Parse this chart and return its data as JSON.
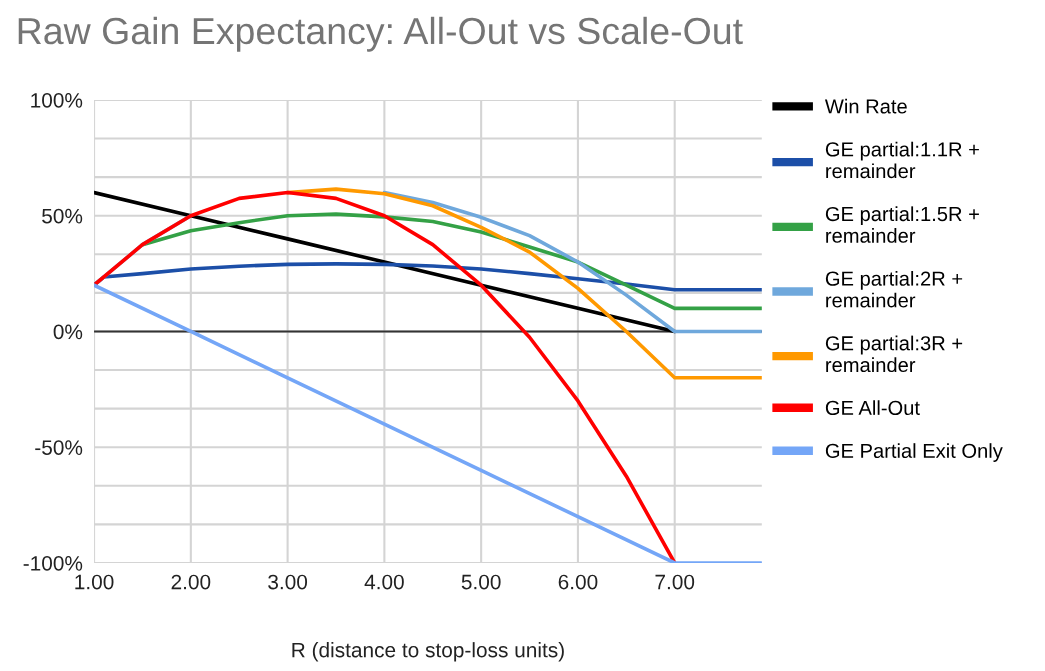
{
  "chart_data": {
    "type": "line",
    "title": "Raw Gain Expectancy: All-Out vs Scale-Out",
    "xlabel": "R (distance to stop-loss units)",
    "xlim": [
      1,
      7.9
    ],
    "xticks": [
      {
        "value": 1,
        "label": "1.00"
      },
      {
        "value": 2,
        "label": "2.00"
      },
      {
        "value": 3,
        "label": "3.00"
      },
      {
        "value": 4,
        "label": "4.00"
      },
      {
        "value": 5,
        "label": "5.00"
      },
      {
        "value": 6,
        "label": "6.00"
      },
      {
        "value": 7,
        "label": "7.00"
      }
    ],
    "ylim": [
      -100,
      100
    ],
    "yticks": [
      {
        "value": -100,
        "label": "-100%"
      },
      {
        "value": -83.33,
        "label": null
      },
      {
        "value": -66.67,
        "label": null
      },
      {
        "value": -50,
        "label": "-50%"
      },
      {
        "value": -33.33,
        "label": null
      },
      {
        "value": -16.67,
        "label": null
      },
      {
        "value": 0,
        "label": "0%"
      },
      {
        "value": 16.67,
        "label": null
      },
      {
        "value": 33.33,
        "label": null
      },
      {
        "value": 50,
        "label": "50%"
      },
      {
        "value": 66.67,
        "label": null
      },
      {
        "value": 83.33,
        "label": null
      },
      {
        "value": 100,
        "label": "100%"
      }
    ],
    "grid": true,
    "legend": "top right",
    "marker": "none",
    "line_style": "solid",
    "ref_lines": [
      {
        "axis": "y",
        "value": 0,
        "color": "#333333"
      }
    ],
    "series": [
      {
        "name": "Win Rate",
        "color": "#000000",
        "x": [
          1,
          2,
          3,
          4,
          5,
          6,
          7
        ],
        "values": [
          60,
          50,
          40,
          30,
          20,
          10,
          0
        ]
      },
      {
        "name": "GE partial:1.1R +\nremainder",
        "color": "#1c4fa8",
        "x": [
          1,
          1.1,
          1.5,
          2,
          2.5,
          3,
          3.5,
          4,
          4.5,
          5,
          5.5,
          6,
          6.5,
          7,
          7.9
        ],
        "values": [
          20,
          23.5,
          25,
          27,
          28.2,
          29,
          29.2,
          29,
          28.3,
          27,
          25,
          22.8,
          20.5,
          18,
          18
        ]
      },
      {
        "name": "GE partial:1.5R +\nremainder",
        "color": "#34a146",
        "x": [
          1.5,
          2,
          2.5,
          3,
          3.5,
          4,
          4.5,
          5,
          5.5,
          6,
          6.5,
          7,
          7.9
        ],
        "values": [
          37.5,
          43.5,
          47,
          50,
          50.7,
          49.5,
          47.5,
          43,
          36.5,
          30,
          20,
          10,
          10
        ]
      },
      {
        "name": "GE partial:2R +\nremainder",
        "color": "#6fa8dc",
        "x": [
          1,
          1.5,
          2,
          2.5,
          3,
          3.5,
          4,
          4.5,
          5,
          5.5,
          6,
          6.5,
          7,
          7.9
        ],
        "values": [
          20,
          37.5,
          50,
          null,
          null,
          null,
          60,
          55.7,
          49.3,
          41.4,
          30,
          15.7,
          0,
          0
        ]
      },
      {
        "name": "GE partial:3R +\nremainder",
        "color": "#ff9900",
        "x": [
          3,
          3.5,
          4,
          4.5,
          5,
          5.5,
          6,
          6.5,
          7,
          7.9
        ],
        "values": [
          60,
          61.5,
          59.5,
          54.3,
          45,
          34.3,
          18.6,
          0,
          -20,
          -20
        ]
      },
      {
        "name": "GE All-Out",
        "color": "#ff0000",
        "x": [
          1,
          1.5,
          2,
          2.5,
          3,
          3.5,
          4,
          4.5,
          5,
          5.5,
          6,
          6.5,
          7
        ],
        "values": [
          20,
          37.5,
          50,
          57.5,
          60,
          57.5,
          50,
          37.5,
          20,
          -2.5,
          -30,
          -62.5,
          -100
        ]
      },
      {
        "name": "GE Partial Exit Only",
        "color": "#74a6f7",
        "x": [
          1,
          2,
          3,
          4,
          5,
          6,
          7,
          7.9
        ],
        "values": [
          20,
          0,
          -20,
          -40,
          -60,
          -80,
          -100,
          -100
        ]
      }
    ]
  }
}
